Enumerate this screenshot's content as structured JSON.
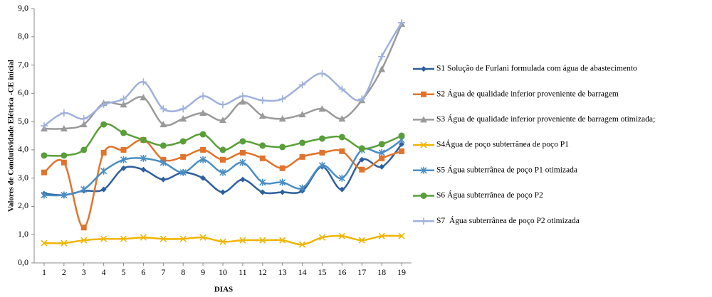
{
  "chart_data": {
    "type": "line",
    "ylabel": "Valores de Condutividade Elétrica -CE inicial",
    "xlabel": "DIAS",
    "x": [
      1,
      2,
      3,
      4,
      5,
      6,
      7,
      8,
      9,
      10,
      11,
      12,
      13,
      14,
      15,
      16,
      17,
      18,
      19
    ],
    "xlim": [
      0.5,
      19.5
    ],
    "xticks": [
      1,
      2,
      3,
      4,
      5,
      6,
      7,
      8,
      9,
      10,
      11,
      12,
      13,
      14,
      15,
      16,
      17,
      18,
      19
    ],
    "ylim": [
      0,
      9
    ],
    "yticks": [
      {
        "value": 0,
        "label": "0,0"
      },
      {
        "value": 1,
        "label": "1,0"
      },
      {
        "value": 2,
        "label": "2,0"
      },
      {
        "value": 3,
        "label": "3,0"
      },
      {
        "value": 4,
        "label": "4,0"
      },
      {
        "value": 5,
        "label": "5,0"
      },
      {
        "value": 6,
        "label": "6,0"
      },
      {
        "value": 7,
        "label": "7,0"
      },
      {
        "value": 8,
        "label": "8,0"
      },
      {
        "value": 9,
        "label": "9,0"
      }
    ],
    "grid": false,
    "smooth": true,
    "legend": "right",
    "series": [
      {
        "name": "S1 Solução de Furlani formulada com água de abastecimento",
        "color": "#2e5f9e",
        "marker": "diamond",
        "values": [
          2.45,
          2.4,
          2.55,
          2.6,
          3.35,
          3.3,
          2.95,
          3.2,
          3.0,
          2.5,
          2.95,
          2.5,
          2.5,
          2.55,
          3.4,
          2.6,
          3.65,
          3.4,
          4.2
        ]
      },
      {
        "name": "S2 Água de qualidade inferior proveniente de barragem",
        "color": "#e0742c",
        "marker": "square",
        "values": [
          3.2,
          3.55,
          1.25,
          3.9,
          4.0,
          4.35,
          3.65,
          3.75,
          4.0,
          3.65,
          3.9,
          3.7,
          3.35,
          3.75,
          3.9,
          3.95,
          3.3,
          3.7,
          3.95
        ]
      },
      {
        "name": "S3 Água de qualidade inferior proveniente de barragem otimizada;",
        "color": "#9a9a9a",
        "marker": "triangle",
        "values": [
          4.75,
          4.75,
          4.9,
          5.65,
          5.6,
          5.85,
          4.9,
          5.1,
          5.3,
          5.05,
          5.7,
          5.2,
          5.1,
          5.25,
          5.45,
          5.1,
          5.75,
          6.85,
          8.45
        ]
      },
      {
        "name": "S4Água de poço subterrânea de poço P1",
        "color": "#f0b400",
        "marker": "x",
        "values": [
          0.7,
          0.7,
          0.8,
          0.85,
          0.85,
          0.9,
          0.85,
          0.85,
          0.9,
          0.75,
          0.8,
          0.8,
          0.8,
          0.65,
          0.9,
          0.95,
          0.8,
          0.95,
          0.95
        ]
      },
      {
        "name": "S5 Água subterrânea de poço P1 otimizada",
        "color": "#4a8ec4",
        "marker": "asterisk",
        "values": [
          2.4,
          2.4,
          2.6,
          3.25,
          3.65,
          3.7,
          3.55,
          3.2,
          3.65,
          3.2,
          3.55,
          2.85,
          2.85,
          2.65,
          3.45,
          3.0,
          4.0,
          3.9,
          4.35
        ]
      },
      {
        "name": "S6 Água subterrânea de poço P2",
        "color": "#5a9e3a",
        "marker": "circle",
        "values": [
          3.8,
          3.8,
          4.0,
          4.9,
          4.6,
          4.35,
          4.15,
          4.3,
          4.55,
          4.0,
          4.3,
          4.15,
          4.1,
          4.25,
          4.4,
          4.45,
          4.05,
          4.2,
          4.5
        ]
      },
      {
        "name": "S7  Água subterrânea de poço P2 otimizada",
        "color": "#9fb0dc",
        "marker": "plus",
        "values": [
          4.85,
          5.3,
          5.1,
          5.6,
          5.8,
          6.4,
          5.45,
          5.45,
          5.9,
          5.6,
          5.9,
          5.75,
          5.8,
          6.3,
          6.7,
          6.15,
          5.8,
          7.3,
          8.5
        ]
      }
    ]
  }
}
